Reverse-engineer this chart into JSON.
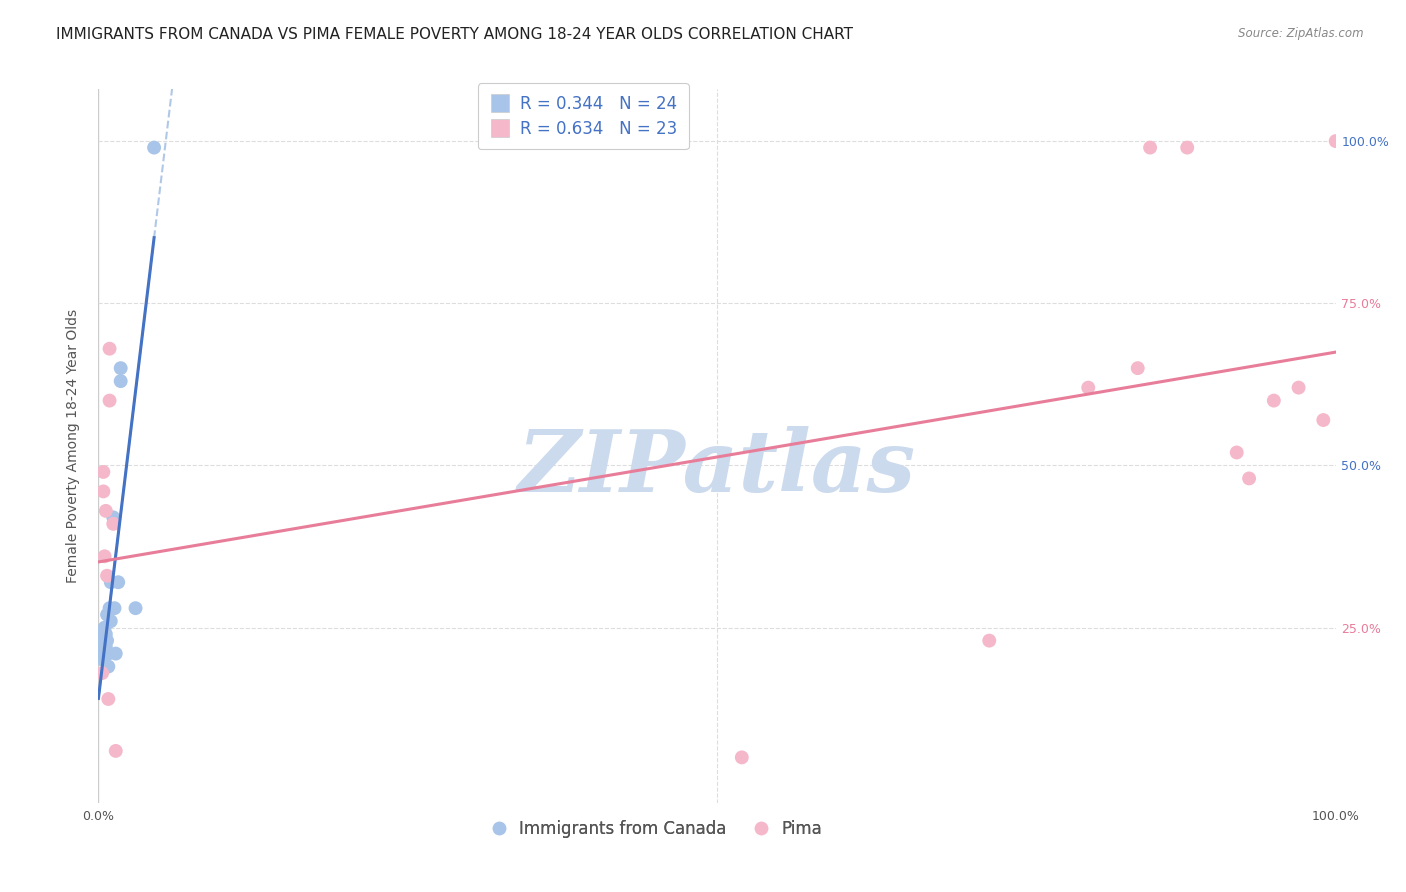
{
  "title": "IMMIGRANTS FROM CANADA VS PIMA FEMALE POVERTY AMONG 18-24 YEAR OLDS CORRELATION CHART",
  "source": "Source: ZipAtlas.com",
  "ylabel": "Female Poverty Among 18-24 Year Olds",
  "xlim": [
    0,
    1
  ],
  "ylim": [
    0,
    1
  ],
  "legend_r_blue": "R = 0.344",
  "legend_n_blue": "N = 24",
  "legend_r_pink": "R = 0.634",
  "legend_n_pink": "N = 23",
  "blue_scatter_x": [
    0.003,
    0.003,
    0.004,
    0.004,
    0.005,
    0.005,
    0.005,
    0.006,
    0.006,
    0.007,
    0.007,
    0.008,
    0.008,
    0.009,
    0.01,
    0.01,
    0.012,
    0.013,
    0.014,
    0.016,
    0.018,
    0.018,
    0.03,
    0.045
  ],
  "blue_scatter_y": [
    0.22,
    0.24,
    0.2,
    0.23,
    0.21,
    0.25,
    0.23,
    0.22,
    0.24,
    0.23,
    0.27,
    0.21,
    0.19,
    0.28,
    0.26,
    0.32,
    0.42,
    0.28,
    0.21,
    0.32,
    0.63,
    0.65,
    0.28,
    0.99
  ],
  "pink_scatter_x": [
    0.003,
    0.004,
    0.004,
    0.005,
    0.006,
    0.007,
    0.008,
    0.009,
    0.009,
    0.012,
    0.014,
    0.52,
    0.72,
    0.8,
    0.84,
    0.85,
    0.88,
    0.92,
    0.93,
    0.95,
    0.97,
    0.99,
    1.0
  ],
  "pink_scatter_y": [
    0.18,
    0.49,
    0.46,
    0.36,
    0.43,
    0.33,
    0.14,
    0.6,
    0.68,
    0.41,
    0.06,
    0.05,
    0.23,
    0.62,
    0.65,
    0.99,
    0.99,
    0.52,
    0.48,
    0.6,
    0.62,
    0.57,
    1.0
  ],
  "blue_line_color": "#4472c4",
  "pink_line_color": "#e87d9a",
  "blue_scatter_color": "#a8c4e8",
  "pink_scatter_color": "#f5b8cb",
  "dashed_line_color": "#b0c8e8",
  "watermark_color": "#ccdaee",
  "grid_color": "#dddddd",
  "background_color": "#ffffff",
  "title_fontsize": 11,
  "axis_label_fontsize": 10,
  "tick_fontsize": 9,
  "legend_fontsize": 12,
  "scatter_size": 100,
  "right_tick_colors": [
    "#4472c4",
    "#e87d9a",
    "#4472c4",
    "#e87d9a"
  ]
}
